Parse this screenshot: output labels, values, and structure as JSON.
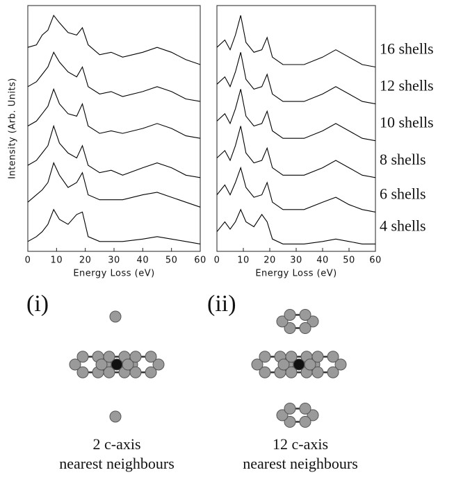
{
  "chart_data": [
    {
      "type": "line",
      "ylabel": "Intensity (Arb. Units)",
      "xlabel": "Energy Loss (eV)",
      "xlim": [
        0,
        60
      ],
      "xticks": [
        0,
        10,
        20,
        30,
        40,
        50,
        60
      ],
      "ylim": [
        0,
        100
      ],
      "x": [
        0,
        3,
        5,
        7,
        9,
        11,
        14,
        17,
        19,
        21,
        25,
        29,
        33,
        40,
        45,
        50,
        55,
        60
      ],
      "series": [
        {
          "color": "#000000",
          "values": [
            83,
            84,
            88,
            90,
            96,
            93,
            89,
            88,
            91,
            84,
            80,
            81,
            79,
            81,
            83,
            81,
            78,
            76
          ]
        },
        {
          "color": "#000000",
          "values": [
            67,
            69,
            72,
            75,
            81,
            77,
            73,
            71,
            75,
            67,
            64,
            65,
            63,
            65,
            67,
            65,
            62,
            61
          ]
        },
        {
          "color": "#000000",
          "values": [
            51,
            53,
            56,
            59,
            66,
            60,
            56,
            55,
            60,
            51,
            48,
            49,
            48,
            50,
            52,
            50,
            47,
            46
          ]
        },
        {
          "color": "#000000",
          "values": [
            35,
            37,
            40,
            43,
            51,
            44,
            40,
            38,
            43,
            35,
            32,
            33,
            31,
            34,
            36,
            34,
            31,
            30
          ]
        },
        {
          "color": "#000000",
          "values": [
            20,
            23,
            25,
            28,
            36,
            31,
            26,
            28,
            32,
            23,
            21,
            21,
            21,
            23,
            24,
            22,
            20,
            18
          ]
        },
        {
          "color": "#000000",
          "values": [
            4,
            6,
            8,
            11,
            17,
            13,
            11,
            15,
            16,
            6,
            4,
            4,
            4,
            5,
            6,
            5,
            4,
            3
          ]
        }
      ]
    },
    {
      "type": "line",
      "xlabel": "Energy Loss (eV)",
      "xlim": [
        0,
        60
      ],
      "xticks": [
        0,
        10,
        20,
        30,
        40,
        50,
        60
      ],
      "ylim": [
        0,
        100
      ],
      "x": [
        0,
        3,
        5,
        7,
        9,
        11,
        14,
        17,
        19,
        21,
        25,
        29,
        33,
        40,
        45,
        50,
        55,
        60
      ],
      "series": [
        {
          "name": "16 shells",
          "color": "#000000",
          "values": [
            83,
            86,
            82,
            88,
            96,
            85,
            81,
            82,
            87,
            79,
            76,
            76,
            76,
            79,
            82,
            79,
            76,
            75
          ]
        },
        {
          "name": "12 shells",
          "color": "#000000",
          "values": [
            68,
            71,
            67,
            73,
            81,
            70,
            66,
            67,
            72,
            64,
            61,
            61,
            61,
            64,
            67,
            64,
            61,
            60
          ]
        },
        {
          "name": "10 shells",
          "color": "#000000",
          "values": [
            53,
            56,
            52,
            58,
            66,
            55,
            51,
            52,
            57,
            49,
            46,
            46,
            46,
            49,
            52,
            49,
            46,
            45
          ]
        },
        {
          "name": "8 shells",
          "color": "#000000",
          "values": [
            38,
            41,
            37,
            43,
            51,
            40,
            36,
            37,
            42,
            34,
            31,
            31,
            31,
            34,
            37,
            34,
            31,
            30
          ]
        },
        {
          "name": "6 shells",
          "color": "#000000",
          "values": [
            23,
            27,
            23,
            28,
            34,
            26,
            22,
            23,
            28,
            20,
            17,
            17,
            17,
            20,
            22,
            19,
            17,
            16
          ]
        },
        {
          "name": "4 shells",
          "color": "#000000",
          "values": [
            8,
            12,
            9,
            12,
            17,
            12,
            10,
            15,
            12,
            5,
            3,
            3,
            3,
            4,
            5,
            4,
            3,
            3
          ]
        }
      ]
    }
  ],
  "diagrams": [
    {
      "label": "(i)",
      "caption": [
        "2 c-axis",
        "nearest neighbours"
      ]
    },
    {
      "label": "(ii)",
      "caption": [
        "12 c-axis",
        "nearest neighbours"
      ]
    }
  ]
}
